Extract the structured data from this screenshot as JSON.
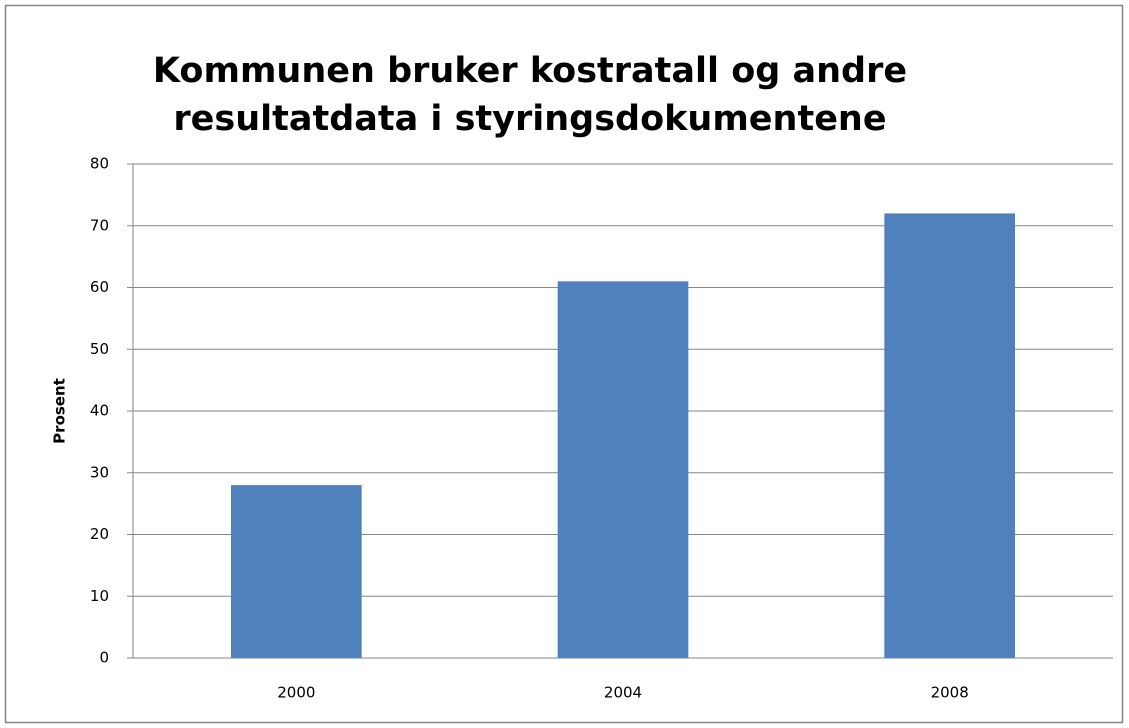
{
  "chart_data": {
    "type": "bar",
    "title": [
      "Kommunen bruker kostratall og andre",
      "resultatdata i styringsdokumentene"
    ],
    "y_label": "Prosent",
    "categories": [
      "2000",
      "2004",
      "2008"
    ],
    "values": [
      28,
      61,
      72
    ],
    "color": "#4f81bd",
    "ylim": [
      0,
      80
    ],
    "yticks": [
      0,
      10,
      20,
      30,
      40,
      50,
      60,
      70,
      80
    ],
    "grid": true
  }
}
